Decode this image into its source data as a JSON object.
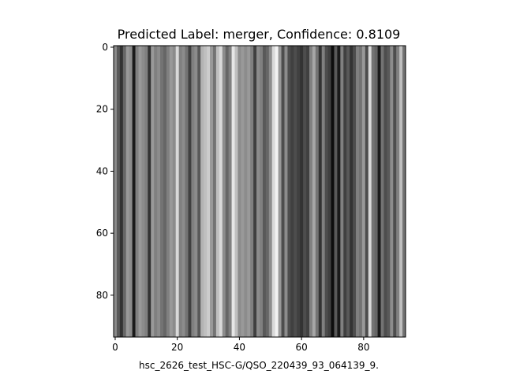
{
  "chart_data": {
    "type": "heatmap",
    "title": "Predicted Label: merger, Confidence: 0.8109",
    "xlabel": "hsc_2626_test_HSC-G/QSO_220439_93_064139_9.",
    "ylabel": "",
    "colormap": "gray",
    "image_size": [
      94,
      94
    ],
    "xlim": [
      -0.5,
      93.5
    ],
    "ylim": [
      93.5,
      -0.5
    ],
    "x_ticks": [
      0,
      20,
      40,
      60,
      80
    ],
    "y_ticks": [
      0,
      20,
      40,
      60,
      80
    ],
    "column_intensity": [
      0.55,
      0.35,
      0.2,
      0.4,
      0.6,
      0.55,
      0.1,
      0.5,
      0.6,
      0.55,
      0.5,
      0.2,
      0.6,
      0.5,
      0.55,
      0.45,
      0.4,
      0.5,
      0.6,
      0.55,
      0.85,
      0.5,
      0.55,
      0.45,
      0.25,
      0.5,
      0.55,
      0.35,
      0.7,
      0.75,
      0.8,
      0.6,
      0.45,
      0.75,
      0.85,
      0.55,
      0.4,
      0.5,
      0.9,
      0.75,
      0.55,
      0.6,
      0.55,
      0.6,
      0.5,
      0.25,
      0.55,
      0.5,
      0.35,
      0.4,
      0.55,
      0.85,
      0.95,
      0.6,
      0.3,
      0.55,
      0.3,
      0.25,
      0.3,
      0.25,
      0.2,
      0.3,
      0.25,
      0.5,
      0.65,
      0.45,
      0.2,
      0.5,
      0.3,
      0.25,
      0.05,
      0.35,
      0.1,
      0.5,
      0.25,
      0.35,
      0.2,
      0.3,
      0.5,
      0.45,
      0.6,
      0.3,
      0.85,
      0.45,
      0.4,
      0.1,
      0.45,
      0.3,
      0.35,
      0.55,
      0.3,
      0.5,
      0.75,
      0.45
    ]
  }
}
